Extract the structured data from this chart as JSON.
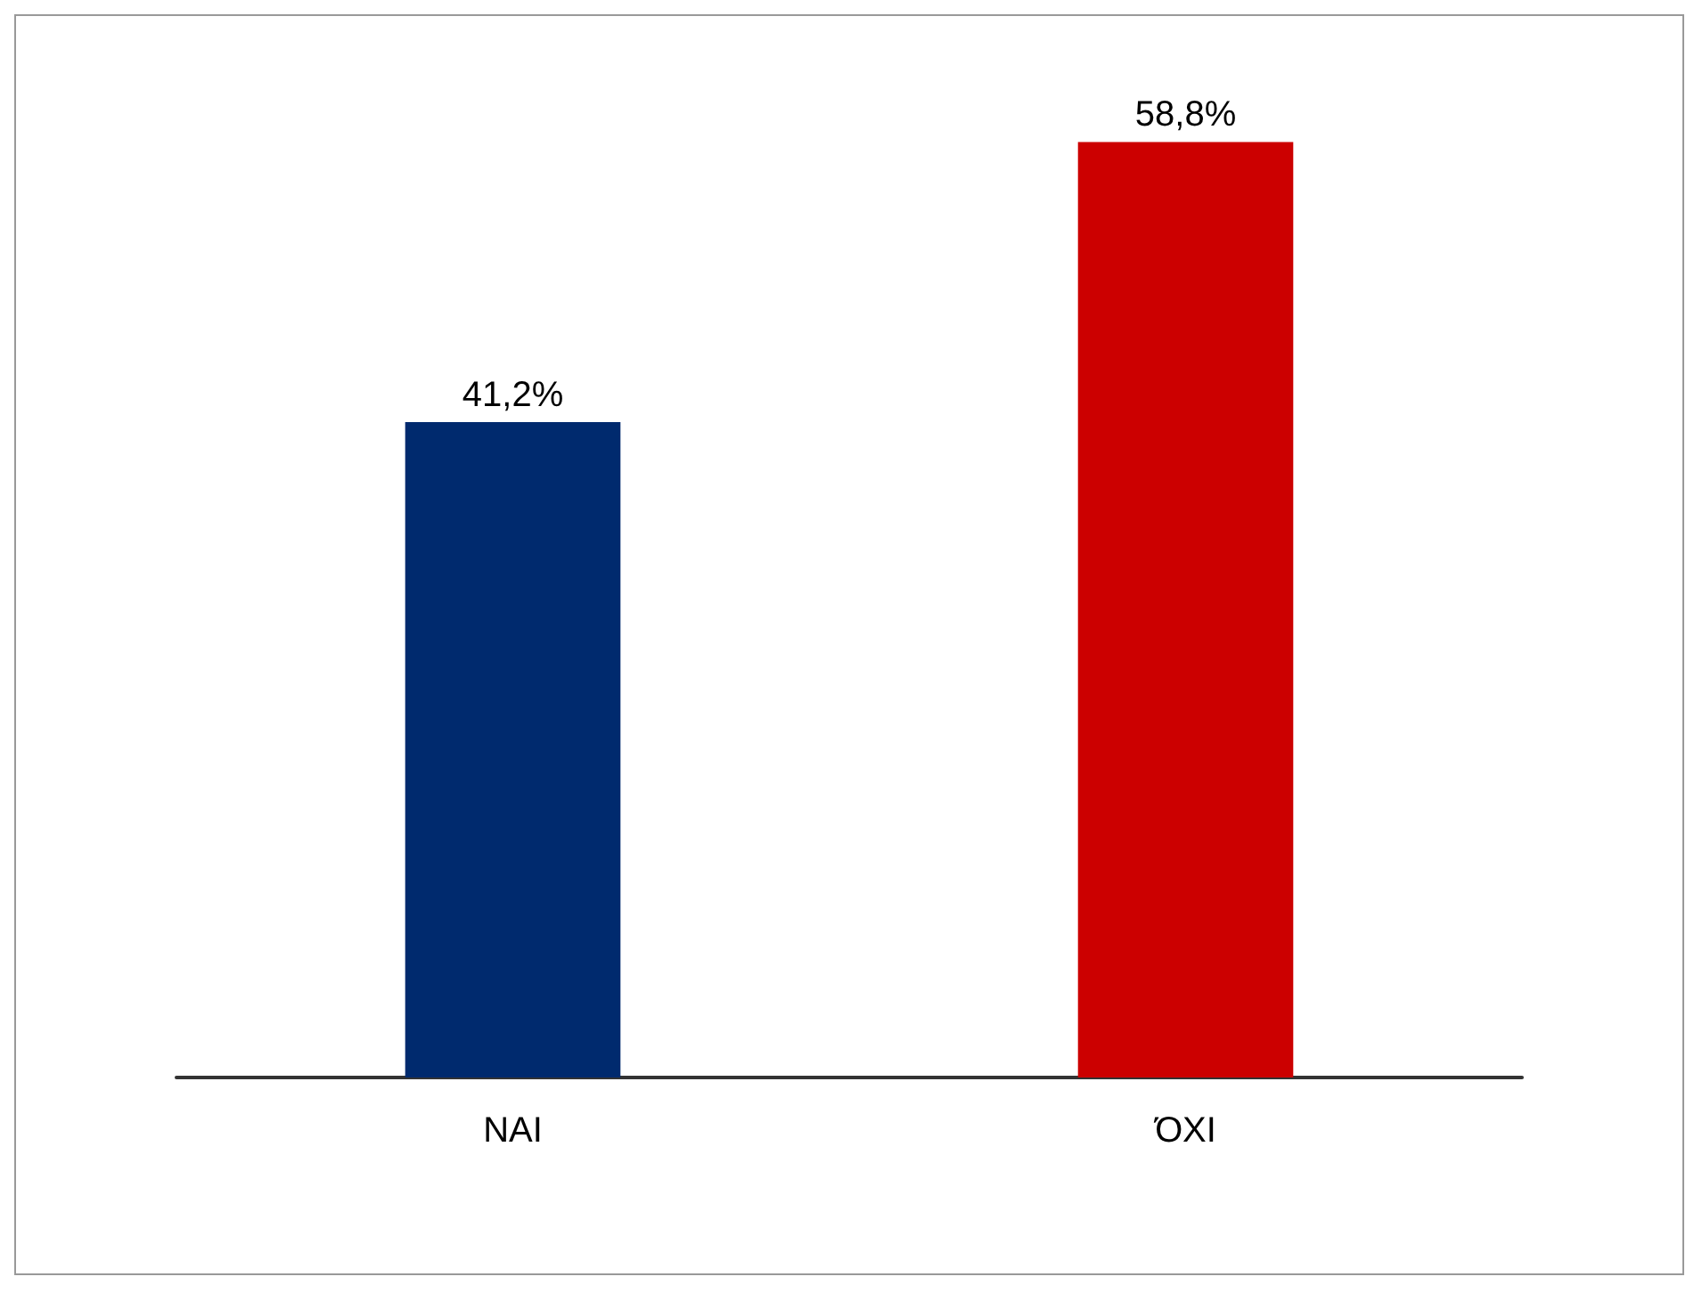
{
  "chart_data": {
    "type": "bar",
    "categories": [
      "NAI",
      "ΌΧΙ"
    ],
    "values": [
      41.2,
      58.8
    ],
    "colors": [
      "#002a6e",
      "#cc0000"
    ],
    "value_labels": [
      "41,2%",
      "58,8%"
    ],
    "tick_labels": "x",
    "grid": false
  }
}
